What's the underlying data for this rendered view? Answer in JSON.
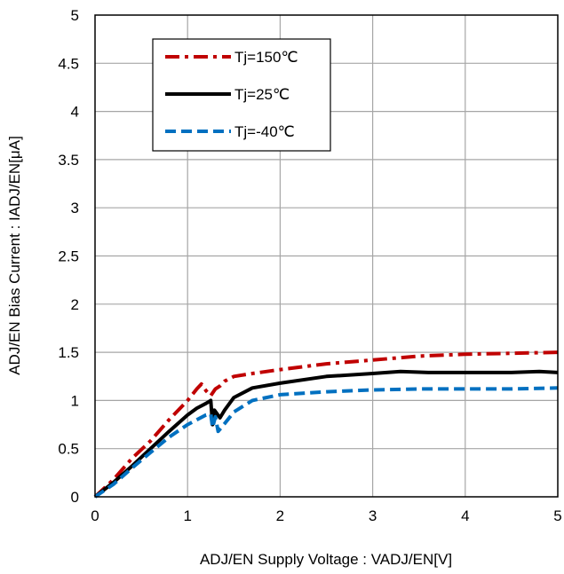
{
  "chart_data": {
    "type": "line",
    "title": "",
    "xlabel": "ADJ/EN Supply Voltage : VADJ/EN[V]",
    "ylabel": "ADJ/EN Bias Current : IADJ/EN[μA]",
    "xlim": [
      0,
      5
    ],
    "ylim": [
      0,
      5
    ],
    "x_ticks": [
      0,
      1,
      2,
      3,
      4,
      5
    ],
    "x_tick_labels": [
      "0",
      "1",
      "2",
      "3",
      "4",
      "5"
    ],
    "y_ticks": [
      0,
      0.5,
      1,
      1.5,
      2,
      2.5,
      3,
      3.5,
      4,
      4.5,
      5
    ],
    "y_tick_labels": [
      "0",
      "0.5",
      "1",
      "1.5",
      "2",
      "2.5",
      "3",
      "3.5",
      "4",
      "4.5",
      "5"
    ],
    "grid": true,
    "legend_position": "top-left",
    "series": [
      {
        "name": "Tj=150℃",
        "color": "#c00000",
        "style": "dash-dot",
        "points": [
          [
            0,
            0
          ],
          [
            0.2,
            0.18
          ],
          [
            0.4,
            0.4
          ],
          [
            0.6,
            0.58
          ],
          [
            0.8,
            0.8
          ],
          [
            1.0,
            1.0
          ],
          [
            1.1,
            1.12
          ],
          [
            1.15,
            1.17
          ],
          [
            1.2,
            1.1
          ],
          [
            1.25,
            1.05
          ],
          [
            1.3,
            1.12
          ],
          [
            1.35,
            1.15
          ],
          [
            1.4,
            1.2
          ],
          [
            1.5,
            1.25
          ],
          [
            1.7,
            1.28
          ],
          [
            2.0,
            1.32
          ],
          [
            2.5,
            1.38
          ],
          [
            3.0,
            1.42
          ],
          [
            3.5,
            1.46
          ],
          [
            4.0,
            1.48
          ],
          [
            4.5,
            1.49
          ],
          [
            5.0,
            1.5
          ]
        ]
      },
      {
        "name": "Tj=25℃",
        "color": "#000000",
        "style": "solid",
        "points": [
          [
            0,
            0
          ],
          [
            0.2,
            0.15
          ],
          [
            0.4,
            0.32
          ],
          [
            0.6,
            0.5
          ],
          [
            0.8,
            0.68
          ],
          [
            1.0,
            0.85
          ],
          [
            1.1,
            0.92
          ],
          [
            1.2,
            0.97
          ],
          [
            1.25,
            1.0
          ],
          [
            1.27,
            0.75
          ],
          [
            1.29,
            0.9
          ],
          [
            1.35,
            0.82
          ],
          [
            1.4,
            0.9
          ],
          [
            1.5,
            1.03
          ],
          [
            1.7,
            1.13
          ],
          [
            2.0,
            1.18
          ],
          [
            2.5,
            1.25
          ],
          [
            3.0,
            1.28
          ],
          [
            3.3,
            1.3
          ],
          [
            3.6,
            1.29
          ],
          [
            4.0,
            1.29
          ],
          [
            4.5,
            1.29
          ],
          [
            4.8,
            1.3
          ],
          [
            5.0,
            1.29
          ]
        ]
      },
      {
        "name": "Tj=-40℃",
        "color": "#0070c0",
        "style": "dashed",
        "points": [
          [
            0,
            0
          ],
          [
            0.2,
            0.13
          ],
          [
            0.4,
            0.3
          ],
          [
            0.6,
            0.46
          ],
          [
            0.8,
            0.62
          ],
          [
            1.0,
            0.75
          ],
          [
            1.1,
            0.8
          ],
          [
            1.2,
            0.85
          ],
          [
            1.25,
            0.86
          ],
          [
            1.27,
            0.72
          ],
          [
            1.3,
            0.83
          ],
          [
            1.33,
            0.68
          ],
          [
            1.4,
            0.76
          ],
          [
            1.5,
            0.88
          ],
          [
            1.7,
            1.0
          ],
          [
            2.0,
            1.06
          ],
          [
            2.5,
            1.09
          ],
          [
            3.0,
            1.11
          ],
          [
            3.5,
            1.12
          ],
          [
            4.0,
            1.12
          ],
          [
            4.5,
            1.12
          ],
          [
            5.0,
            1.13
          ]
        ]
      }
    ]
  }
}
